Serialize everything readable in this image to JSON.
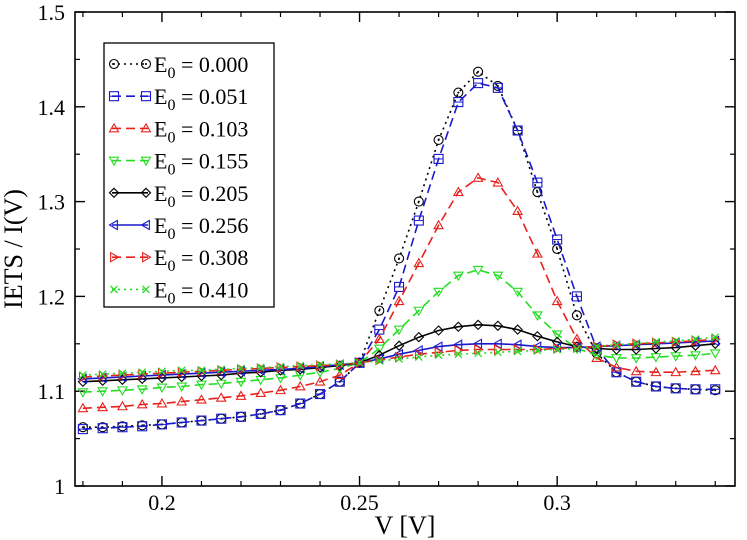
{
  "chart_data": {
    "type": "line",
    "title": "",
    "xlabel": "V [V]",
    "ylabel": "IETS / I(V)",
    "xlim": [
      0.178,
      0.345
    ],
    "ylim": [
      1.0,
      1.5
    ],
    "xticks": [
      0.2,
      0.25,
      0.3
    ],
    "yticks": [
      1.0,
      1.1,
      1.2,
      1.3,
      1.4,
      1.5
    ],
    "xtick_labels": [
      "0.2",
      "0.25",
      "0.3"
    ],
    "ytick_labels": [
      "1",
      "1.1",
      "1.2",
      "1.3",
      "1.4",
      "1.5"
    ],
    "grid": false,
    "legend_position": "top-left",
    "x": [
      0.18,
      0.185,
      0.19,
      0.195,
      0.2,
      0.205,
      0.21,
      0.215,
      0.22,
      0.225,
      0.23,
      0.235,
      0.24,
      0.245,
      0.25,
      0.255,
      0.26,
      0.265,
      0.27,
      0.275,
      0.28,
      0.285,
      0.29,
      0.295,
      0.3,
      0.305,
      0.31,
      0.315,
      0.32,
      0.325,
      0.33,
      0.335,
      0.34
    ],
    "series": [
      {
        "name": "E0 = 0.000",
        "label_main": "E",
        "label_sub": "0",
        "label_value": " = 0.000",
        "color": "#000000",
        "marker": "dotcircle",
        "dash": "2,4",
        "values": [
          1.062,
          1.062,
          1.063,
          1.064,
          1.065,
          1.067,
          1.069,
          1.071,
          1.073,
          1.076,
          1.08,
          1.087,
          1.097,
          1.11,
          1.13,
          1.185,
          1.24,
          1.3,
          1.365,
          1.415,
          1.437,
          1.422,
          1.375,
          1.31,
          1.25,
          1.18,
          1.14,
          1.12,
          1.11,
          1.105,
          1.103,
          1.102,
          1.101
        ]
      },
      {
        "name": "E0 = 0.051",
        "label_main": "E",
        "label_sub": "0",
        "label_value": " = 0.051",
        "color": "#1a1acc",
        "marker": "square",
        "dash": "9,5",
        "values": [
          1.06,
          1.061,
          1.062,
          1.063,
          1.065,
          1.067,
          1.069,
          1.071,
          1.073,
          1.076,
          1.08,
          1.087,
          1.097,
          1.11,
          1.13,
          1.165,
          1.21,
          1.28,
          1.345,
          1.405,
          1.425,
          1.42,
          1.375,
          1.32,
          1.26,
          1.2,
          1.145,
          1.12,
          1.11,
          1.105,
          1.103,
          1.102,
          1.102
        ]
      },
      {
        "name": "E0 = 0.103",
        "label_main": "E",
        "label_sub": "0",
        "label_value": " = 0.103",
        "color": "#e8211c",
        "marker": "triangle-up",
        "dash": "9,5",
        "values": [
          1.082,
          1.083,
          1.084,
          1.086,
          1.087,
          1.089,
          1.091,
          1.093,
          1.095,
          1.098,
          1.101,
          1.105,
          1.11,
          1.117,
          1.13,
          1.155,
          1.195,
          1.235,
          1.275,
          1.31,
          1.325,
          1.32,
          1.29,
          1.245,
          1.195,
          1.155,
          1.135,
          1.125,
          1.121,
          1.12,
          1.12,
          1.121,
          1.122
        ]
      },
      {
        "name": "E0 = 0.155",
        "label_main": "E",
        "label_sub": "0",
        "label_value": " = 0.155",
        "color": "#22dd22",
        "marker": "triangle-down",
        "dash": "9,5",
        "values": [
          1.099,
          1.1,
          1.101,
          1.102,
          1.104,
          1.105,
          1.107,
          1.108,
          1.11,
          1.112,
          1.114,
          1.117,
          1.12,
          1.124,
          1.13,
          1.145,
          1.165,
          1.185,
          1.205,
          1.222,
          1.228,
          1.222,
          1.205,
          1.18,
          1.16,
          1.145,
          1.138,
          1.135,
          1.135,
          1.136,
          1.137,
          1.138,
          1.14
        ]
      },
      {
        "name": "E0 = 0.205",
        "label_main": "E",
        "label_sub": "0",
        "label_value": " = 0.205",
        "color": "#000000",
        "marker": "diamond",
        "dash": "",
        "values": [
          1.11,
          1.111,
          1.112,
          1.113,
          1.114,
          1.115,
          1.116,
          1.117,
          1.119,
          1.12,
          1.122,
          1.123,
          1.125,
          1.127,
          1.13,
          1.138,
          1.148,
          1.157,
          1.164,
          1.168,
          1.17,
          1.169,
          1.165,
          1.158,
          1.152,
          1.147,
          1.145,
          1.144,
          1.144,
          1.145,
          1.146,
          1.148,
          1.15
        ]
      },
      {
        "name": "E0 = 0.256",
        "label_main": "E",
        "label_sub": "0",
        "label_value": " = 0.256",
        "color": "#1a1acc",
        "marker": "triangle-left",
        "dash": "",
        "values": [
          1.113,
          1.114,
          1.115,
          1.116,
          1.117,
          1.118,
          1.119,
          1.12,
          1.121,
          1.122,
          1.123,
          1.124,
          1.126,
          1.128,
          1.13,
          1.134,
          1.139,
          1.143,
          1.147,
          1.149,
          1.15,
          1.15,
          1.149,
          1.147,
          1.146,
          1.146,
          1.147,
          1.148,
          1.149,
          1.15,
          1.151,
          1.152,
          1.153
        ]
      },
      {
        "name": "E0 = 0.308",
        "label_main": "E",
        "label_sub": "0",
        "label_value": " = 0.308",
        "color": "#e8211c",
        "marker": "triangle-right",
        "dash": "9,5",
        "values": [
          1.115,
          1.116,
          1.117,
          1.118,
          1.119,
          1.12,
          1.121,
          1.122,
          1.123,
          1.124,
          1.125,
          1.126,
          1.127,
          1.128,
          1.13,
          1.133,
          1.136,
          1.139,
          1.141,
          1.143,
          1.144,
          1.144,
          1.144,
          1.144,
          1.145,
          1.146,
          1.147,
          1.149,
          1.15,
          1.151,
          1.152,
          1.153,
          1.155
        ]
      },
      {
        "name": "E0 = 0.410",
        "label_main": "E",
        "label_sub": "0",
        "label_value": " = 0.410",
        "color": "#22dd22",
        "marker": "x",
        "dash": "2,4",
        "values": [
          1.117,
          1.118,
          1.119,
          1.12,
          1.121,
          1.122,
          1.122,
          1.123,
          1.124,
          1.125,
          1.126,
          1.127,
          1.128,
          1.129,
          1.13,
          1.132,
          1.134,
          1.136,
          1.138,
          1.139,
          1.14,
          1.141,
          1.142,
          1.143,
          1.144,
          1.145,
          1.147,
          1.149,
          1.15,
          1.152,
          1.153,
          1.155,
          1.157
        ]
      }
    ]
  }
}
